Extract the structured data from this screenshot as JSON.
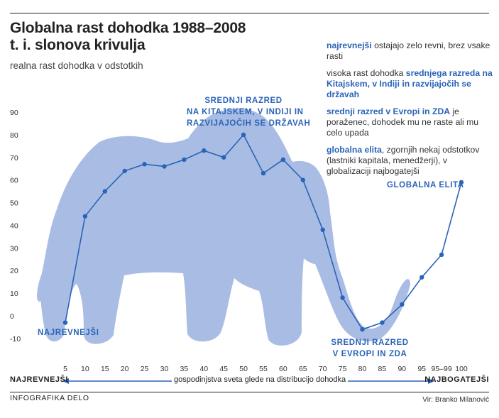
{
  "header": {
    "title_line1": "Globalna rast dohodka 1988–2008",
    "title_line2": "t. i. slonova krivulja",
    "subtitle": "realna rast dohodka v odstotkih"
  },
  "legend": {
    "items": [
      {
        "hl": "najrevnejši",
        "pre": "",
        "post": " ostajajo zelo revni, brez vsake rasti"
      },
      {
        "pre": "visoka rast dohodka ",
        "hl": "srednjega razreda na Kitajskem, v Indiji in razvijajočih se državah",
        "post": ""
      },
      {
        "hl": "srednji razred v Evropi in ZDA",
        "pre": "",
        "post": " je poraženec, dohodek mu ne raste ali mu celo upada"
      },
      {
        "hl": "globalna elita",
        "pre": "",
        "post": ", zgornjih nekaj odstotkov (lastniki kapitala, menedžerji), v globalizaciji najbogatejši"
      }
    ]
  },
  "annotations": {
    "poorest": "NAJREVNEJŠI",
    "middle_asia_l1": "SREDNJI RAZRED",
    "middle_asia_l2": "NA KITAJSKEM, V INDIJI IN",
    "middle_asia_l3": "RAZVIJAJOČIH SE DRŽAVAH",
    "middle_west_l1": "SREDNJI RAZRED",
    "middle_west_l2": "V EVROPI IN ZDA",
    "elite": "GLOBALNA ELITA"
  },
  "axis": {
    "left": "NAJREVNEJŠI",
    "right": "NAJBOGATEJŠI",
    "middle": "gospodinjstva sveta glede na distribucijo dohodka"
  },
  "footer": {
    "source_left": "INFOGRAFIKA DELO",
    "source_right": "Vir: Branko Milanović"
  },
  "colors": {
    "line": "#2a64b8",
    "elephant": "#a9bde4",
    "accent": "#2a64b8"
  },
  "chart_data": {
    "type": "line",
    "title": "Globalna rast dohodka 1988–2008",
    "subtitle": "realna rast dohodka v odstotkih",
    "xlabel": "gospodinjstva sveta glede na distribucijo dohodka",
    "ylabel": "",
    "categories": [
      "5",
      "10",
      "15",
      "20",
      "25",
      "30",
      "35",
      "40",
      "45",
      "50",
      "55",
      "60",
      "65",
      "70",
      "75",
      "80",
      "85",
      "90",
      "95",
      "95–99",
      "100"
    ],
    "values": [
      -3,
      44,
      55,
      64,
      67,
      66,
      69,
      73,
      70,
      80,
      63,
      69,
      60,
      38,
      8,
      -6,
      -3,
      5,
      17,
      27,
      59
    ],
    "yticks": [
      -10,
      0,
      10,
      20,
      30,
      40,
      50,
      60,
      70,
      80,
      90
    ],
    "ylim": [
      -10,
      90
    ],
    "grid": false
  }
}
